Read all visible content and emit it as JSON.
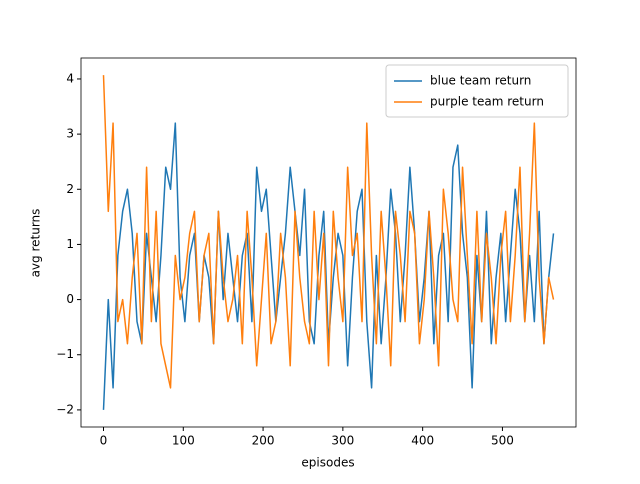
{
  "chart_data": {
    "type": "line",
    "xlabel": "episodes",
    "ylabel": "avg returns",
    "x": [
      0,
      6,
      12,
      18,
      24,
      30,
      36,
      42,
      48,
      54,
      60,
      66,
      72,
      78,
      84,
      90,
      96,
      102,
      108,
      114,
      120,
      126,
      132,
      138,
      144,
      150,
      156,
      162,
      168,
      174,
      180,
      186,
      192,
      198,
      204,
      210,
      216,
      222,
      228,
      234,
      240,
      246,
      252,
      258,
      264,
      270,
      276,
      282,
      288,
      294,
      300,
      306,
      312,
      318,
      324,
      330,
      336,
      342,
      348,
      354,
      360,
      366,
      372,
      378,
      384,
      390,
      396,
      402,
      408,
      414,
      420,
      426,
      432,
      438,
      444,
      450,
      456,
      462,
      468,
      474,
      480,
      486,
      492,
      498,
      504,
      510,
      516,
      522,
      528,
      534,
      540,
      546,
      552,
      558,
      564
    ],
    "series": [
      {
        "name": "blue team return",
        "color": "#1f77b4",
        "values": [
          -2,
          0,
          -1.6,
          0.8,
          1.6,
          2.0,
          1.2,
          -0.4,
          -0.8,
          1.2,
          0.4,
          -0.4,
          0.8,
          2.4,
          2.0,
          3.2,
          0.4,
          -0.4,
          0.8,
          1.2,
          -0.4,
          0.8,
          0.4,
          -0.8,
          1.6,
          0,
          1.2,
          0.4,
          -0.4,
          0.8,
          1.2,
          -0.4,
          2.4,
          1.6,
          2.0,
          0.8,
          -0.4,
          0.4,
          1.2,
          2.4,
          1.6,
          0.8,
          2.0,
          -0.4,
          -0.8,
          0.8,
          1.6,
          -0.8,
          0.4,
          1.2,
          0.8,
          -1.2,
          0.4,
          1.6,
          2.0,
          -0.4,
          -1.6,
          0.8,
          -0.8,
          0.4,
          2.0,
          1.2,
          -0.4,
          0.8,
          2.4,
          1.2,
          -0.4,
          0.4,
          1.6,
          -0.8,
          0.8,
          1.2,
          -0.4,
          2.4,
          2.8,
          1.2,
          0.4,
          -1.6,
          0.8,
          -0.4,
          1.6,
          -0.8,
          0.4,
          1.2,
          -0.4,
          0.8,
          2.0,
          1.2,
          -0.4,
          0.8,
          -0.4,
          1.6,
          -0.8,
          0.4,
          1.2
        ]
      },
      {
        "name": "purple team return",
        "color": "#ff7f0e",
        "values": [
          4.07,
          1.6,
          3.2,
          -0.4,
          0,
          -0.8,
          0.4,
          1.2,
          -0.8,
          2.4,
          -0.4,
          1.6,
          -0.8,
          -1.2,
          -1.6,
          0.8,
          0,
          0.4,
          1.2,
          1.6,
          -0.4,
          0.8,
          1.2,
          -0.8,
          1.6,
          0.4,
          -0.4,
          0,
          0.8,
          -0.8,
          1.6,
          0.4,
          -1.2,
          0,
          1.2,
          -0.8,
          -0.4,
          1.2,
          0.4,
          -1.2,
          1.6,
          0.4,
          -0.4,
          -0.8,
          1.6,
          0,
          1.2,
          -1.2,
          1.6,
          0.4,
          -0.4,
          2.4,
          0.8,
          1.2,
          -0.4,
          3.2,
          0.8,
          -0.8,
          1.6,
          0.4,
          -1.2,
          1.6,
          0.8,
          -0.4,
          1.6,
          1.2,
          -0.8,
          0,
          1.6,
          0.4,
          -1.2,
          2.0,
          1.2,
          0,
          -0.4,
          2.4,
          0.8,
          -0.8,
          1.6,
          -0.4,
          1.2,
          0.4,
          -0.8,
          0.8,
          1.6,
          -0.4,
          0.8,
          2.4,
          -0.4,
          1.2,
          3.2,
          0.4,
          -0.8,
          0.4,
          0
        ]
      }
    ],
    "xlim": [
      -28.2,
      592.2
    ],
    "ylim": [
      -2.31,
      4.38
    ],
    "xticks": [
      0,
      100,
      200,
      300,
      400,
      500
    ],
    "yticks": [
      {
        "value": -2,
        "label": "−2"
      },
      {
        "value": -1,
        "label": "−1"
      },
      0,
      1,
      2,
      3,
      4
    ],
    "legend": "upper-right",
    "grid": false
  }
}
